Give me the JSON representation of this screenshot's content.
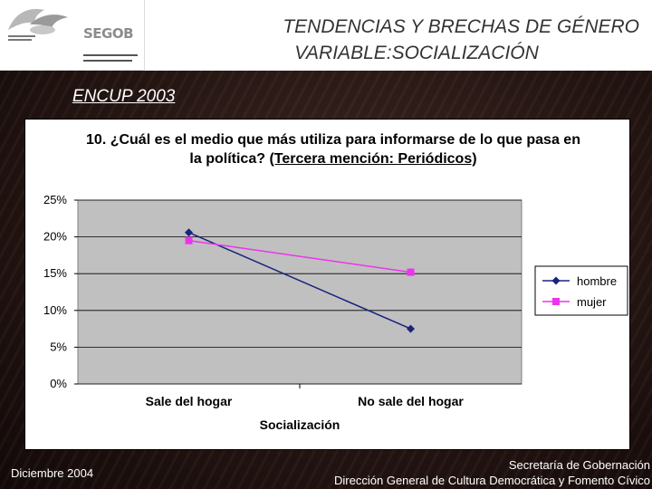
{
  "header": {
    "logo_text": "SEGOB",
    "title_line1": "TENDENCIAS Y BRECHAS DE GÉNERO",
    "title_line2": "VARIABLE:SOCIALIZACIÓN"
  },
  "survey_label": "ENCUP 2003",
  "chart_data": {
    "type": "line",
    "title_part1": "10. ¿Cuál es el medio que más utiliza para informarse de lo que pasa en la política?",
    "title_part2": "(Tercera mención: Periódicos)",
    "categories": [
      "Sale del hogar",
      "No sale del hogar"
    ],
    "xlabel": "Socialización",
    "ylabel": "",
    "ylim": [
      0,
      0.25
    ],
    "yticks": [
      "0%",
      "5%",
      "10%",
      "15%",
      "20%",
      "25%"
    ],
    "grid": true,
    "legend_position": "right",
    "series": [
      {
        "name": "hombre",
        "values": [
          0.206,
          0.075
        ],
        "color": "#1a237e",
        "marker": "diamond"
      },
      {
        "name": "mujer",
        "values": [
          0.195,
          0.152
        ],
        "color": "#ee33ee",
        "marker": "square"
      }
    ]
  },
  "footer": {
    "date": "Diciembre  2004",
    "org_line1": "Secretaría de Gobernación",
    "org_line2": "Dirección General de Cultura Democrática y Fomento Cívico"
  }
}
